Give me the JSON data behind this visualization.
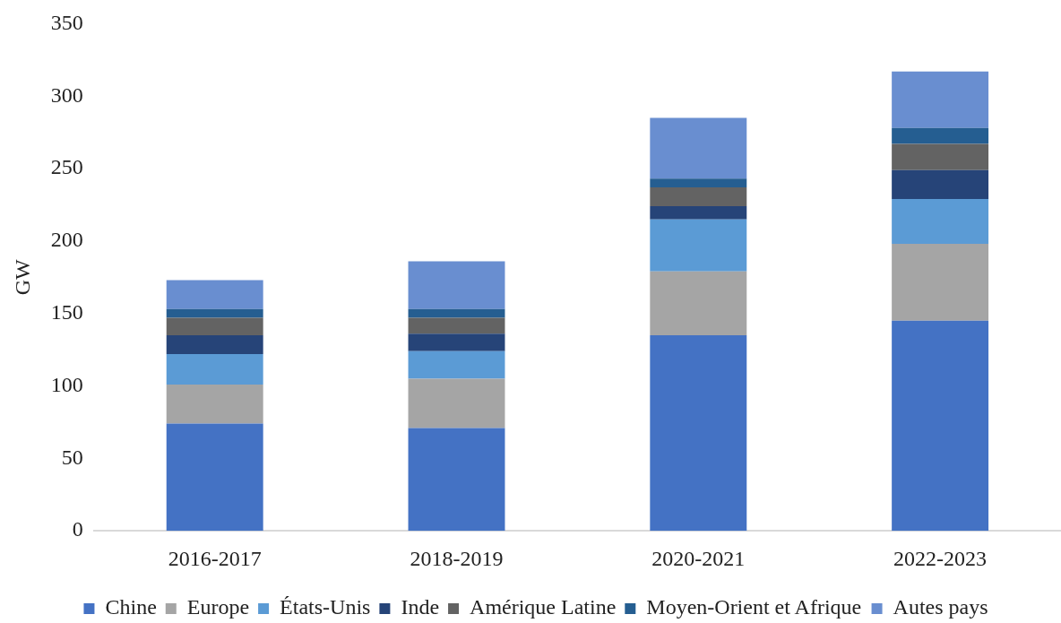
{
  "chart_data": {
    "type": "bar",
    "stacked": true,
    "ylabel": "GW",
    "categories": [
      "2016-2017",
      "2018-2019",
      "2020-2021",
      "2022-2023"
    ],
    "series": [
      {
        "name": "Chine",
        "color": "#4472c4",
        "values": [
          74,
          71,
          135,
          145
        ]
      },
      {
        "name": "Europe",
        "color": "#a5a5a5",
        "values": [
          27,
          34,
          44,
          53
        ]
      },
      {
        "name": "États-Unis",
        "color": "#5b9bd5",
        "values": [
          21,
          19,
          36,
          31
        ]
      },
      {
        "name": "Inde",
        "color": "#264478",
        "values": [
          13,
          12,
          9,
          20
        ]
      },
      {
        "name": "Amérique Latine",
        "color": "#636363",
        "values": [
          12,
          11,
          13,
          18
        ]
      },
      {
        "name": "Moyen-Orient et Afrique",
        "color": "#255e91",
        "values": [
          6,
          6,
          6,
          11
        ]
      },
      {
        "name": "Autes pays",
        "color": "#698ed0",
        "values": [
          20,
          33,
          42,
          39
        ]
      }
    ],
    "ylim": [
      0,
      350
    ],
    "yticks": [
      0,
      50,
      100,
      150,
      200,
      250,
      300,
      350
    ],
    "legend": "bottom"
  }
}
